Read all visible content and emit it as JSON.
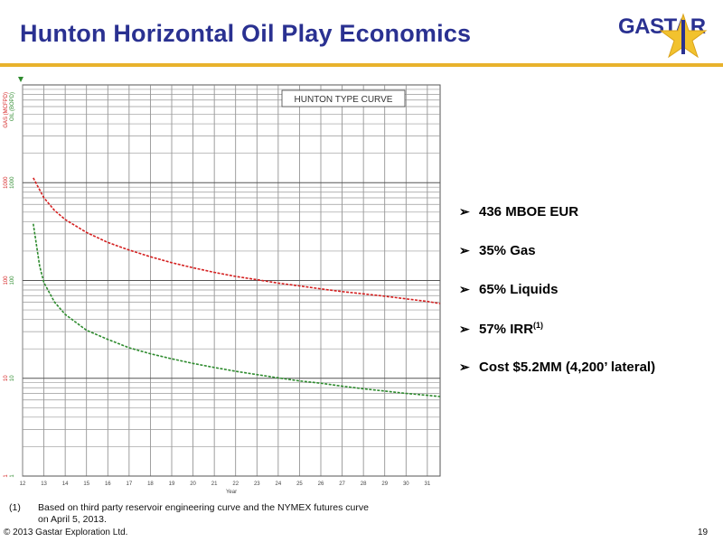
{
  "slide": {
    "title": "Hunton Horizontal Oil Play Economics",
    "logo_text": "GASTAR",
    "page_number": "19",
    "copyright": "© 2013 Gastar Exploration Ltd."
  },
  "bullets": [
    {
      "text": "436 MBOE EUR",
      "sup": ""
    },
    {
      "text": "35% Gas",
      "sup": ""
    },
    {
      "text": "65% Liquids",
      "sup": ""
    },
    {
      "text": "57% IRR",
      "sup": "(1)"
    },
    {
      "text": "Cost $5.2MM (4,200’ lateral)",
      "sup": ""
    }
  ],
  "footnote": {
    "number": "(1)",
    "text": "Based on third party reservoir engineering curve and the NYMEX futures curve on April 5, 2013."
  },
  "colors": {
    "title": "#2a3191",
    "rule": "#e8b22c",
    "gas": "#d42020",
    "oil": "#2e8b2e",
    "star": "#f2c22e"
  },
  "chart_data": {
    "type": "line",
    "title": "HUNTON TYPE CURVE",
    "xlabel": "Year",
    "ylabel_gas": "GAS (MCFPD)",
    "ylabel_oil": "OIL (BOPD)",
    "yscale": "log",
    "ylim": [
      1,
      10000
    ],
    "xlim": [
      12,
      31.6
    ],
    "x_ticks": [
      "12",
      "13",
      "14",
      "15",
      "16",
      "17",
      "18",
      "19",
      "20",
      "21",
      "22",
      "23",
      "24",
      "25",
      "26",
      "27",
      "28",
      "29",
      "30",
      "31"
    ],
    "y_tick_labels": [
      {
        "value": 1000,
        "gas": "1000",
        "oil": "1000"
      },
      {
        "value": 100,
        "gas": "100",
        "oil": "100"
      },
      {
        "value": 10,
        "gas": "10",
        "oil": "10"
      },
      {
        "value": 1,
        "gas": "1",
        "oil": "1"
      }
    ],
    "grid": true,
    "series": [
      {
        "name": "GAS (MCFPD)",
        "x": [
          12.5,
          13,
          13.5,
          14,
          15,
          16,
          17,
          18,
          19,
          20,
          21,
          22,
          23,
          24,
          25,
          26,
          27,
          28,
          29,
          30,
          31,
          31.6
        ],
        "values": [
          1120,
          700,
          520,
          420,
          310,
          245,
          205,
          175,
          152,
          135,
          121,
          110,
          102,
          94,
          88,
          82,
          77,
          73,
          69,
          65,
          61,
          58
        ]
      },
      {
        "name": "OIL (BOPD)",
        "x": [
          12.5,
          12.8,
          13,
          13.5,
          14,
          15,
          16,
          17,
          18,
          19,
          20,
          21,
          22,
          23,
          24,
          25,
          26,
          27,
          28,
          29,
          30,
          31,
          31.6
        ],
        "values": [
          380,
          140,
          95,
          60,
          45,
          31,
          25,
          20.5,
          17.8,
          15.8,
          14.2,
          12.9,
          11.8,
          10.9,
          10.1,
          9.4,
          8.9,
          8.3,
          7.8,
          7.4,
          7.0,
          6.7,
          6.5
        ]
      }
    ]
  }
}
